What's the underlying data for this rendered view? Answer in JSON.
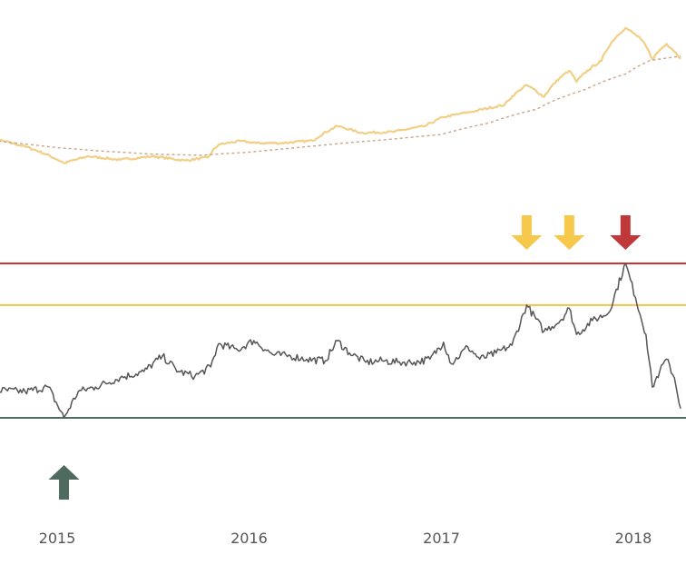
{
  "chart_data": [
    {
      "type": "line",
      "title": "",
      "xlabel": "",
      "ylabel": "",
      "log_scale_y": true,
      "grid": false,
      "legend": "none",
      "series": [
        {
          "role": "price",
          "color": "#f2cf86",
          "points": [
            [
              "2014-07-01",
              620
            ],
            [
              "2014-09-01",
              480
            ],
            [
              "2014-11-01",
              375
            ],
            [
              "2015-01-14",
              215
            ],
            [
              "2015-03-01",
              270
            ],
            [
              "2015-05-01",
              240
            ],
            [
              "2015-07-01",
              270
            ],
            [
              "2015-09-01",
              235
            ],
            [
              "2015-10-15",
              260
            ],
            [
              "2015-11-04",
              400
            ],
            [
              "2015-12-15",
              450
            ],
            [
              "2016-01-15",
              420
            ],
            [
              "2016-03-01",
              420
            ],
            [
              "2016-05-01",
              455
            ],
            [
              "2016-06-17",
              740
            ],
            [
              "2016-08-01",
              590
            ],
            [
              "2016-10-01",
              610
            ],
            [
              "2016-12-01",
              740
            ],
            [
              "2017-01-05",
              1000
            ],
            [
              "2017-03-01",
              1200
            ],
            [
              "2017-05-01",
              1500
            ],
            [
              "2017-06-12",
              2900
            ],
            [
              "2017-07-15",
              1950
            ],
            [
              "2017-09-01",
              4700
            ],
            [
              "2017-09-15",
              3250
            ],
            [
              "2017-11-01",
              6500
            ],
            [
              "2017-12-17",
              19500
            ],
            [
              "2018-01-15",
              13500
            ],
            [
              "2018-02-06",
              6900
            ],
            [
              "2018-03-05",
              11500
            ],
            [
              "2018-04-01",
              7000
            ]
          ]
        },
        {
          "role": "moving-average",
          "color": "#c9a58a",
          "style": "dashed",
          "points": [
            [
              "2014-07-01",
              520
            ],
            [
              "2014-10-01",
              430
            ],
            [
              "2015-01-01",
              360
            ],
            [
              "2015-04-01",
              320
            ],
            [
              "2015-07-01",
              290
            ],
            [
              "2015-10-01",
              280
            ],
            [
              "2016-01-01",
              310
            ],
            [
              "2016-04-01",
              360
            ],
            [
              "2016-07-01",
              420
            ],
            [
              "2016-10-01",
              480
            ],
            [
              "2017-01-01",
              560
            ],
            [
              "2017-04-01",
              820
            ],
            [
              "2017-07-01",
              1300
            ],
            [
              "2017-10-01",
              2500
            ],
            [
              "2017-12-17",
              4200
            ],
            [
              "2018-02-01",
              6600
            ],
            [
              "2018-04-01",
              7600
            ]
          ]
        }
      ]
    },
    {
      "type": "line",
      "title": "",
      "xlabel": "",
      "ylabel": "",
      "ylim": [
        0,
        1
      ],
      "grid": false,
      "legend": "none",
      "x_ticks": [
        {
          "date": "2015-01-01",
          "label": "2015"
        },
        {
          "date": "2016-01-01",
          "label": "2016"
        },
        {
          "date": "2017-01-01",
          "label": "2017"
        },
        {
          "date": "2018-01-01",
          "label": "2018"
        }
      ],
      "series": [
        {
          "role": "oscillator",
          "color": "#555555",
          "points": [
            [
              "2014-07-01",
              0.22
            ],
            [
              "2014-09-01",
              0.18
            ],
            [
              "2014-11-01",
              0.17
            ],
            [
              "2014-12-15",
              0.2
            ],
            [
              "2015-01-14",
              0.0
            ],
            [
              "2015-02-10",
              0.17
            ],
            [
              "2015-03-15",
              0.2
            ],
            [
              "2015-05-01",
              0.26
            ],
            [
              "2015-06-15",
              0.3
            ],
            [
              "2015-07-20",
              0.4
            ],
            [
              "2015-08-20",
              0.3
            ],
            [
              "2015-09-20",
              0.27
            ],
            [
              "2015-10-20",
              0.33
            ],
            [
              "2015-11-04",
              0.48
            ],
            [
              "2015-12-10",
              0.44
            ],
            [
              "2016-01-10",
              0.5
            ],
            [
              "2016-02-15",
              0.41
            ],
            [
              "2016-03-20",
              0.4
            ],
            [
              "2016-04-20",
              0.38
            ],
            [
              "2016-05-25",
              0.37
            ],
            [
              "2016-06-17",
              0.5
            ],
            [
              "2016-07-10",
              0.42
            ],
            [
              "2016-08-10",
              0.36
            ],
            [
              "2016-09-10",
              0.37
            ],
            [
              "2016-10-10",
              0.36
            ],
            [
              "2016-11-10",
              0.36
            ],
            [
              "2016-12-10",
              0.38
            ],
            [
              "2017-01-05",
              0.49
            ],
            [
              "2017-01-20",
              0.35
            ],
            [
              "2017-02-20",
              0.46
            ],
            [
              "2017-03-15",
              0.38
            ],
            [
              "2017-04-15",
              0.42
            ],
            [
              "2017-05-15",
              0.47
            ],
            [
              "2017-06-12",
              0.73
            ],
            [
              "2017-07-15",
              0.56
            ],
            [
              "2017-08-15",
              0.63
            ],
            [
              "2017-09-01",
              0.71
            ],
            [
              "2017-09-15",
              0.54
            ],
            [
              "2017-10-15",
              0.63
            ],
            [
              "2017-11-15",
              0.68
            ],
            [
              "2017-12-17",
              1.0
            ],
            [
              "2018-01-05",
              0.78
            ],
            [
              "2018-01-25",
              0.54
            ],
            [
              "2018-02-06",
              0.2
            ],
            [
              "2018-02-20",
              0.3
            ],
            [
              "2018-03-05",
              0.38
            ],
            [
              "2018-03-20",
              0.26
            ],
            [
              "2018-04-01",
              0.06
            ]
          ]
        }
      ],
      "reference_lines": [
        {
          "role": "top",
          "value": 1.0,
          "color": "#cc3333"
        },
        {
          "role": "warning",
          "value": 0.73,
          "color": "#f2c14e"
        },
        {
          "role": "bottom",
          "value": 0.0,
          "color": "#4a6e63"
        }
      ],
      "markers": [
        {
          "direction": "up",
          "date": "2015-01-14",
          "color": "#4f6b5f"
        },
        {
          "direction": "down",
          "date": "2017-06-12",
          "color": "#f6c84b"
        },
        {
          "direction": "down",
          "date": "2017-09-01",
          "color": "#f6c84b"
        },
        {
          "direction": "down",
          "date": "2017-12-17",
          "color": "#c0393a"
        }
      ]
    }
  ]
}
